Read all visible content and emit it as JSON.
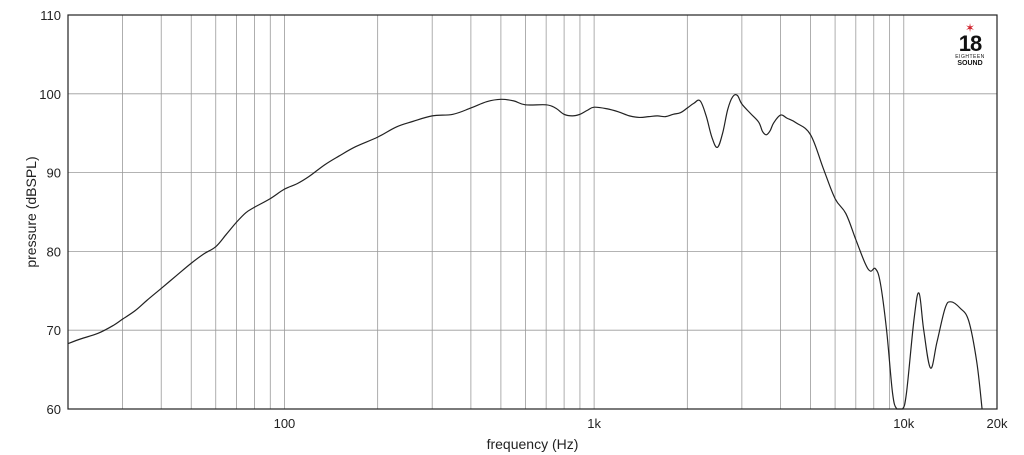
{
  "chart_data": {
    "type": "line",
    "title": "",
    "xlabel": "frequency (Hz)",
    "ylabel": "pressure (dBSPL)",
    "x_scale": "log",
    "xlim": [
      20,
      20000
    ],
    "ylim": [
      60,
      110
    ],
    "grid": true,
    "x_ticks": [
      {
        "value": 100,
        "label": "100"
      },
      {
        "value": 1000,
        "label": "1k"
      },
      {
        "value": 10000,
        "label": "10k"
      },
      {
        "value": 20000,
        "label": "20k"
      }
    ],
    "y_ticks": [
      {
        "value": 60,
        "label": "60"
      },
      {
        "value": 70,
        "label": "70"
      },
      {
        "value": 80,
        "label": "80"
      },
      {
        "value": 90,
        "label": "90"
      },
      {
        "value": 100,
        "label": "100"
      },
      {
        "value": 110,
        "label": "110"
      }
    ],
    "series": [
      {
        "color": "#222222",
        "points": [
          [
            20,
            68.3
          ],
          [
            22,
            68.9
          ],
          [
            25,
            69.6
          ],
          [
            28,
            70.6
          ],
          [
            30,
            71.4
          ],
          [
            33,
            72.5
          ],
          [
            36,
            73.8
          ],
          [
            40,
            75.3
          ],
          [
            45,
            77.0
          ],
          [
            50,
            78.5
          ],
          [
            55,
            79.7
          ],
          [
            60,
            80.6
          ],
          [
            65,
            82.2
          ],
          [
            70,
            83.7
          ],
          [
            75,
            84.9
          ],
          [
            80,
            85.6
          ],
          [
            90,
            86.7
          ],
          [
            100,
            87.9
          ],
          [
            110,
            88.6
          ],
          [
            120,
            89.5
          ],
          [
            135,
            91.0
          ],
          [
            150,
            92.1
          ],
          [
            170,
            93.3
          ],
          [
            200,
            94.5
          ],
          [
            230,
            95.8
          ],
          [
            260,
            96.5
          ],
          [
            300,
            97.2
          ],
          [
            350,
            97.4
          ],
          [
            400,
            98.2
          ],
          [
            450,
            99.0
          ],
          [
            500,
            99.3
          ],
          [
            550,
            99.1
          ],
          [
            600,
            98.6
          ],
          [
            700,
            98.6
          ],
          [
            750,
            98.2
          ],
          [
            800,
            97.4
          ],
          [
            850,
            97.2
          ],
          [
            900,
            97.4
          ],
          [
            950,
            97.9
          ],
          [
            1000,
            98.3
          ],
          [
            1100,
            98.1
          ],
          [
            1200,
            97.7
          ],
          [
            1300,
            97.2
          ],
          [
            1400,
            97.0
          ],
          [
            1500,
            97.1
          ],
          [
            1600,
            97.2
          ],
          [
            1700,
            97.1
          ],
          [
            1800,
            97.4
          ],
          [
            1900,
            97.6
          ],
          [
            2000,
            98.2
          ],
          [
            2100,
            98.8
          ],
          [
            2200,
            99.1
          ],
          [
            2300,
            97.2
          ],
          [
            2400,
            94.5
          ],
          [
            2500,
            93.2
          ],
          [
            2600,
            95.0
          ],
          [
            2700,
            98.0
          ],
          [
            2800,
            99.6
          ],
          [
            2900,
            99.8
          ],
          [
            3000,
            98.7
          ],
          [
            3200,
            97.5
          ],
          [
            3400,
            96.4
          ],
          [
            3500,
            95.2
          ],
          [
            3600,
            94.8
          ],
          [
            3700,
            95.3
          ],
          [
            3800,
            96.3
          ],
          [
            4000,
            97.3
          ],
          [
            4200,
            96.9
          ],
          [
            4500,
            96.3
          ],
          [
            5000,
            94.8
          ],
          [
            5500,
            90.5
          ],
          [
            6000,
            86.7
          ],
          [
            6500,
            84.8
          ],
          [
            7000,
            81.5
          ],
          [
            7500,
            78.5
          ],
          [
            7800,
            77.5
          ],
          [
            8100,
            77.8
          ],
          [
            8400,
            76.0
          ],
          [
            8800,
            70.0
          ],
          [
            9200,
            62.0
          ],
          [
            9500,
            60.0
          ],
          [
            9900,
            60.0
          ],
          [
            10200,
            62.0
          ],
          [
            10800,
            71.5
          ],
          [
            11200,
            74.7
          ],
          [
            11600,
            70.0
          ],
          [
            12200,
            65.2
          ],
          [
            12800,
            68.5
          ],
          [
            13600,
            72.8
          ],
          [
            14200,
            73.6
          ],
          [
            15200,
            72.8
          ],
          [
            16200,
            71.2
          ],
          [
            17200,
            66.0
          ],
          [
            17900,
            60.0
          ]
        ]
      }
    ]
  },
  "logo": {
    "number": "18",
    "line": "EIGHTEEN",
    "word": "SOUND"
  }
}
